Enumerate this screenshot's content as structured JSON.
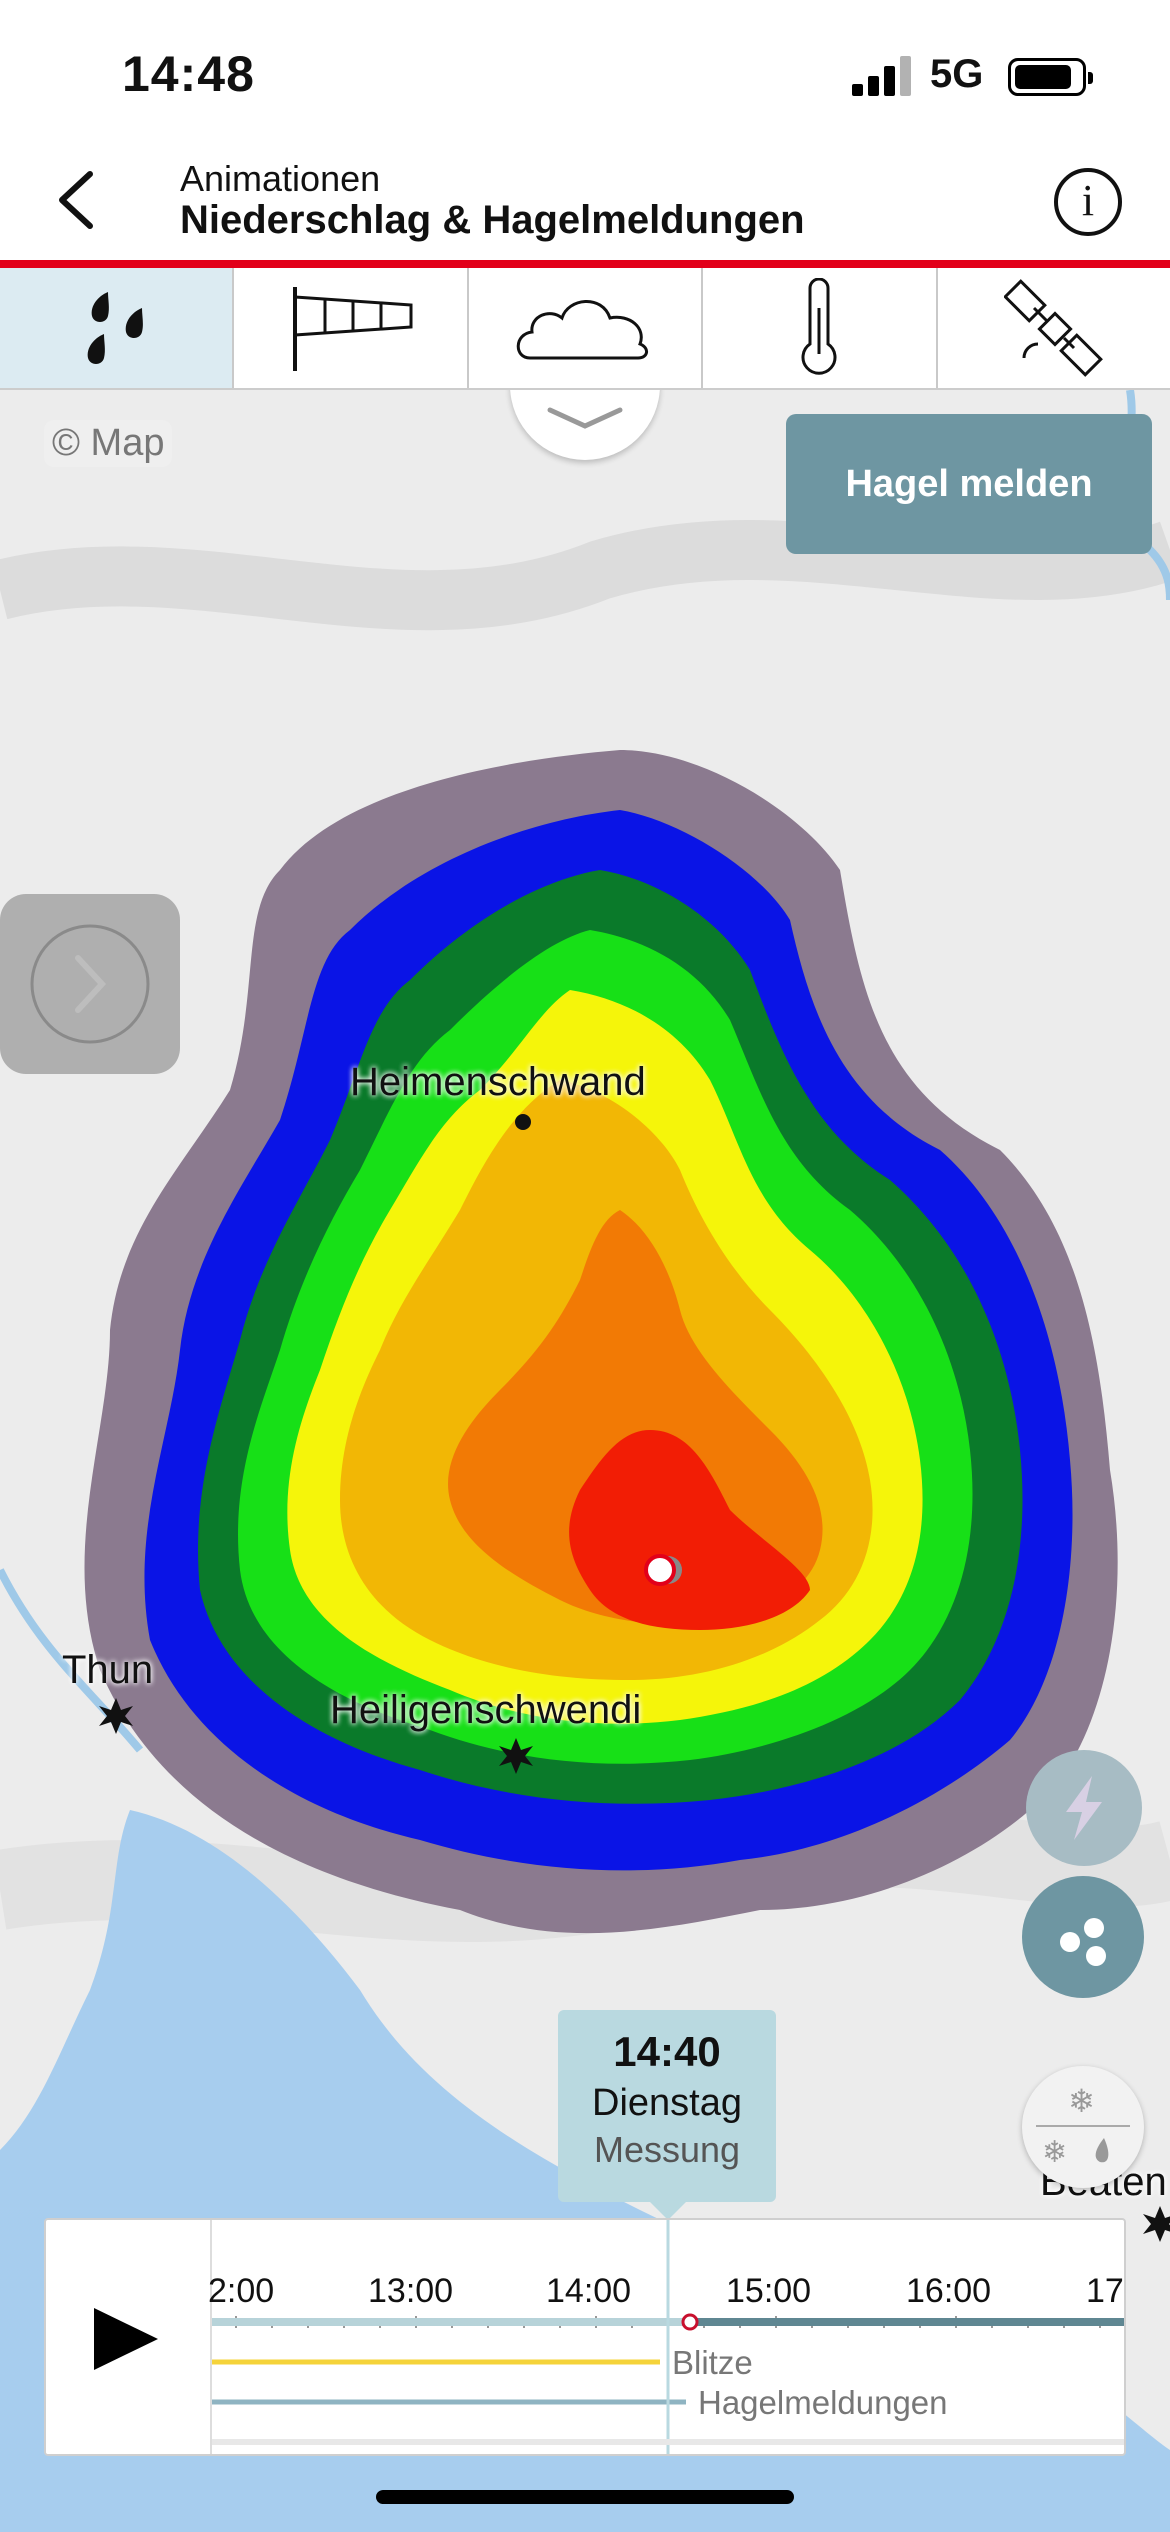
{
  "status_bar": {
    "time": "14:48",
    "network": "5G"
  },
  "header": {
    "subtitle": "Animationen",
    "title": "Niederschlag & Hagelmeldungen",
    "back_icon": "chevron-left-icon",
    "info_icon": "info-icon",
    "info_symbol": "i",
    "accent_color": "#e2001a"
  },
  "tabs": [
    {
      "icon": "rain-drops-icon",
      "active": true
    },
    {
      "icon": "windsock-icon",
      "active": false
    },
    {
      "icon": "cloud-icon",
      "active": false
    },
    {
      "icon": "thermometer-icon",
      "active": false
    },
    {
      "icon": "satellite-icon",
      "active": false
    }
  ],
  "map": {
    "copyright": "© Map",
    "report_hail_button": "Hagel melden",
    "places": {
      "heimenschwand": "Heimenschwand",
      "thun": "Thun",
      "heiligenschwendi": "Heiligenschwendi",
      "beatenberg": "Beaten"
    },
    "precip_colors": [
      "#8b7a8f",
      "#0a14e6",
      "#0a7a2a",
      "#17e017",
      "#f5f50a",
      "#f2b705",
      "#f27a05",
      "#f21d05"
    ]
  },
  "time_badge": {
    "time": "14:40",
    "day": "Dienstag",
    "kind": "Messung"
  },
  "timeline": {
    "ticks": [
      "2:00",
      "13:00",
      "14:00",
      "15:00",
      "16:00",
      "17"
    ],
    "legend": {
      "lightning": "Blitze",
      "hail": "Hagelmeldungen"
    },
    "progress_colors": {
      "past": "#b7d3d9",
      "future": "#5f8792",
      "lightning": "#f5d33a",
      "hail": "#8fb4c2"
    }
  }
}
